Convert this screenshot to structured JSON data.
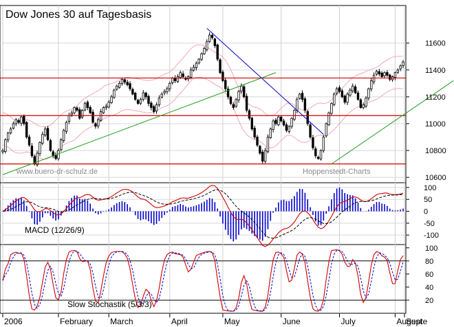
{
  "chart_data": {
    "type": "candlestick-with-indicators",
    "title": "Dow Jones 30 auf Tagesbasis",
    "watermark_left": "www.buero-dr-schulz.de",
    "watermark_right": "Hoppenstedt-Charts",
    "months": [
      {
        "label": "2006",
        "i": 0
      },
      {
        "label": "February",
        "i": 21
      },
      {
        "label": "March",
        "i": 40
      },
      {
        "label": "April",
        "i": 63
      },
      {
        "label": "May",
        "i": 83
      },
      {
        "label": "June",
        "i": 105
      },
      {
        "label": "July",
        "i": 127
      },
      {
        "label": "August",
        "i": 148
      },
      {
        "label": "Septe",
        "i": 170
      }
    ],
    "price_panel": {
      "ylim": [
        10560,
        11880
      ],
      "ticks": [
        10600,
        10800,
        11000,
        11200,
        11400,
        11600
      ],
      "horizontal_lines": [
        10700,
        11060,
        11340
      ],
      "closes": [
        10800,
        10880,
        10930,
        10960,
        11000,
        11030,
        11010,
        11050,
        11000,
        10900,
        10840,
        10760,
        10700,
        10780,
        10860,
        10920,
        10960,
        10880,
        10800,
        10760,
        10740,
        10800,
        10880,
        10950,
        11010,
        11060,
        11080,
        11120,
        11100,
        11040,
        11100,
        11150,
        11120,
        11080,
        11010,
        10980,
        11030,
        11090,
        11120,
        11130,
        11160,
        11200,
        11250,
        11280,
        11300,
        11330,
        11310,
        11290,
        11260,
        11220,
        11180,
        11150,
        11180,
        11230,
        11200,
        11150,
        11120,
        11090,
        11140,
        11190,
        11220,
        11240,
        11260,
        11300,
        11340,
        11320,
        11350,
        11380,
        11350,
        11330,
        11350,
        11400,
        11420,
        11450,
        11480,
        11520,
        11560,
        11610,
        11660,
        11640,
        11580,
        11480,
        11380,
        11320,
        11260,
        11200,
        11150,
        11120,
        11180,
        11240,
        11280,
        11200,
        11100,
        11040,
        10960,
        10900,
        10840,
        10780,
        10720,
        10800,
        10900,
        10960,
        11020,
        11000,
        11050,
        11020,
        10990,
        10950,
        10980,
        11040,
        11100,
        11180,
        11220,
        11180,
        11100,
        11000,
        10900,
        10820,
        10760,
        10740,
        10800,
        10900,
        11000,
        11080,
        11150,
        11220,
        11260,
        11240,
        11200,
        11160,
        11220,
        11250,
        11280,
        11230,
        11180,
        11120,
        11140,
        11190,
        11260,
        11320,
        11360,
        11390,
        11370,
        11350,
        11380,
        11360,
        11330,
        11350,
        11380,
        11400,
        11430,
        11460
      ]
    },
    "macd_panel": {
      "ylim": [
        -140,
        120
      ],
      "ticks": [
        -100,
        -50,
        0,
        50,
        100
      ],
      "label": "MACD (12/26/9)"
    },
    "stoch_panel": {
      "ylim": [
        0,
        105
      ],
      "ticks": [
        20,
        40,
        60,
        80,
        100
      ],
      "horizontal_lines": [
        20,
        80
      ],
      "label": "Slow Stochastik (5/3/3)"
    }
  }
}
